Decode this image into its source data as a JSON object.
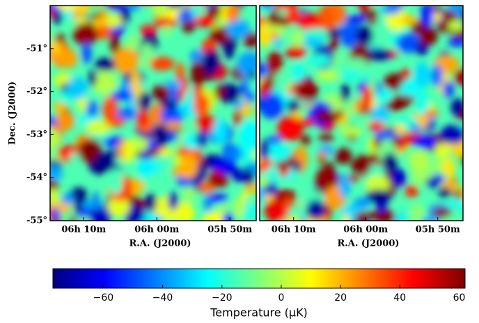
{
  "chart_data": [
    {
      "type": "heatmap",
      "xlabel": "R.A. (J2000)",
      "ylabel": "Dec. (J2000)",
      "xlim": [
        374.6,
        346.4
      ],
      "xticks": [
        {
          "value": 370,
          "label": "06h 10m"
        },
        {
          "value": 360,
          "label": "06h 00m"
        },
        {
          "value": 350,
          "label": "05h 50m"
        }
      ],
      "ylim": [
        -55,
        -50
      ],
      "yticks": [
        {
          "value": -51,
          "label": "-51°"
        },
        {
          "value": -52,
          "label": "-52°"
        },
        {
          "value": -53,
          "label": "-53°"
        },
        {
          "value": -54,
          "label": "-54°"
        },
        {
          "value": -55,
          "label": "-55°"
        }
      ]
    },
    {
      "type": "heatmap",
      "xlabel": "R.A. (J2000)",
      "xlim": [
        374.7,
        346.5
      ],
      "xticks": [
        {
          "value": 370,
          "label": "06h 10m"
        },
        {
          "value": 360,
          "label": "06h 00m"
        },
        {
          "value": 350,
          "label": "05h 50m"
        }
      ],
      "ylim": [
        -55,
        -50
      ]
    }
  ],
  "colorbar": {
    "label": "Temperature (μK)",
    "lim": [
      -77,
      62
    ],
    "ticks": [
      {
        "value": -60,
        "label": "−60"
      },
      {
        "value": -40,
        "label": "−40"
      },
      {
        "value": -20,
        "label": "−20"
      },
      0,
      20,
      40,
      60
    ],
    "colors": [
      "#00007f",
      "#0000ff",
      "#007fff",
      "#00ffff",
      "#7fff7f",
      "#ffff00",
      "#ff7f00",
      "#ff0000",
      "#7f0000"
    ]
  }
}
